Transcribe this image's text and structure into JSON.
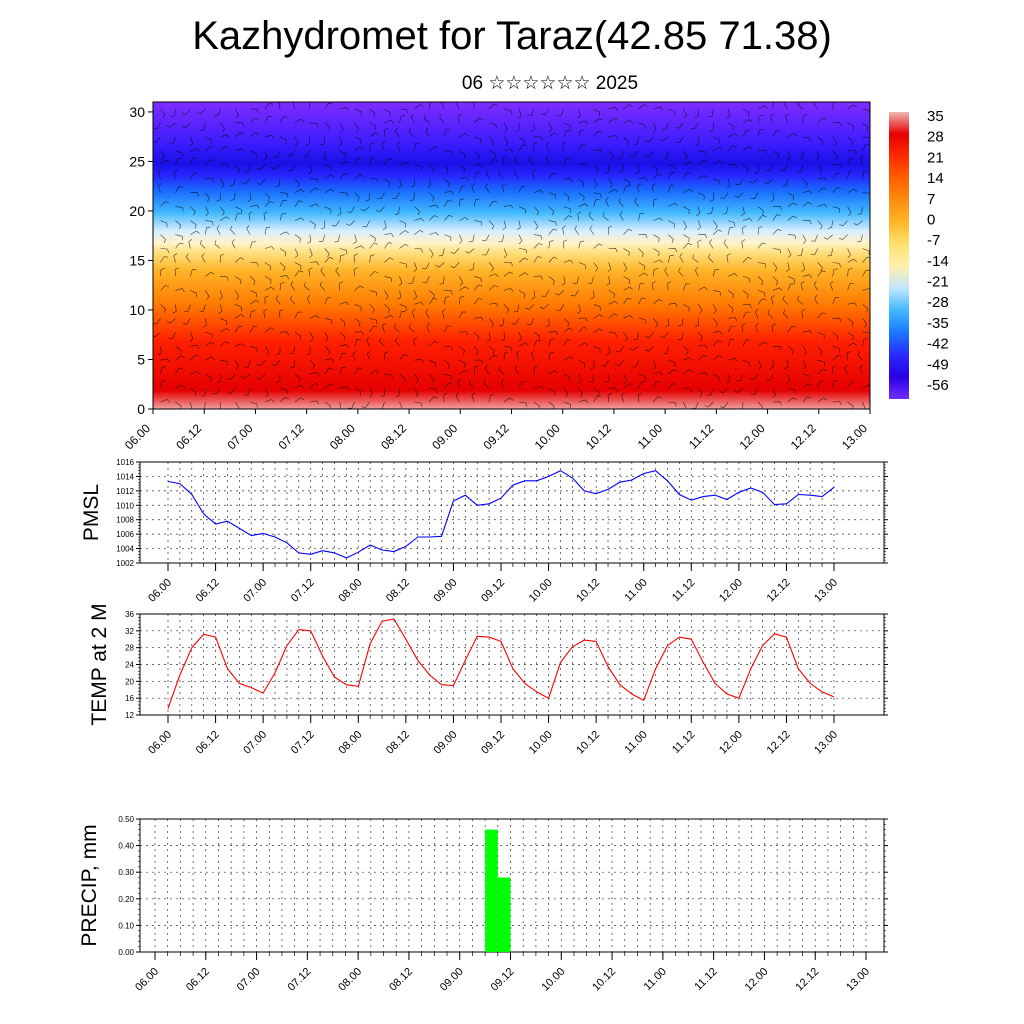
{
  "title": "Kazhydromet for Taraz(42.85 71.38)",
  "subtitle": "06 ☆☆☆☆☆☆ 2025",
  "chart_data": [
    {
      "type": "heatmap",
      "title": "",
      "y_ticks": [
        "0",
        "5",
        "10",
        "15",
        "20",
        "25",
        "30"
      ],
      "y_range": [
        0,
        31
      ],
      "x_ticks": [
        "06.00",
        "06.12",
        "07.00",
        "07.12",
        "08.00",
        "08.12",
        "09.00",
        "09.12",
        "10.00",
        "10.12",
        "11.00",
        "11.12",
        "12.00",
        "12.12",
        "13.00"
      ],
      "colorbar_labels": [
        "35",
        "28",
        "21",
        "14",
        "7",
        "0",
        "-7",
        "-14",
        "-21",
        "-28",
        "-35",
        "-42",
        "-49",
        "-56"
      ],
      "colorbar_colors": [
        "#f0b4b4",
        "#e60000",
        "#ff2a00",
        "#ff6000",
        "#ff8c10",
        "#ffb828",
        "#ffe070",
        "#fff0b0",
        "#bfe6ff",
        "#40b8ff",
        "#1a78ff",
        "#2a2aff",
        "#2800e6",
        "#7030ff"
      ]
    },
    {
      "type": "line",
      "ylabel": "PMSL",
      "ylim": [
        1002,
        1016
      ],
      "y_ticks": [
        "1002",
        "1004",
        "1006",
        "1008",
        "1010",
        "1012",
        "1014",
        "1016"
      ],
      "x_ticks": [
        "06.00",
        "06.12",
        "07.00",
        "07.12",
        "08.00",
        "08.12",
        "09.00",
        "09.12",
        "10.00",
        "10.12",
        "11.00",
        "11.12",
        "12.00",
        "12.12",
        "13.00"
      ],
      "series": [
        {
          "color": "#0000ff",
          "values": [
            1013.3,
            1013.0,
            1011.5,
            1008.8,
            1007.4,
            1007.8,
            1006.8,
            1005.8,
            1006.1,
            1005.6,
            1004.8,
            1003.4,
            1003.2,
            1003.7,
            1003.4,
            1002.7,
            1003.5,
            1004.5,
            1003.8,
            1003.6,
            1004.3,
            1005.6,
            1005.6,
            1005.7,
            1010.6,
            1011.4,
            1010.0,
            1010.2,
            1011.0,
            1012.8,
            1013.4,
            1013.4,
            1014.0,
            1014.8,
            1013.8,
            1012.0,
            1011.6,
            1012.2,
            1013.2,
            1013.5,
            1014.4,
            1014.8,
            1013.4,
            1011.5,
            1010.7,
            1011.2,
            1011.4,
            1010.8,
            1011.8,
            1012.4,
            1011.8,
            1010.1,
            1010.2,
            1011.5,
            1011.4,
            1011.2,
            1012.5
          ]
        }
      ]
    },
    {
      "type": "line",
      "ylabel": "TEMP at 2 M",
      "ylim": [
        12,
        36
      ],
      "y_ticks": [
        "12",
        "16",
        "20",
        "24",
        "28",
        "32",
        "36"
      ],
      "x_ticks": [
        "06.00",
        "06.12",
        "07.00",
        "07.12",
        "08.00",
        "08.12",
        "09.00",
        "09.12",
        "10.00",
        "10.12",
        "11.00",
        "11.12",
        "12.00",
        "12.12",
        "13.00"
      ],
      "series": [
        {
          "color": "#ff0000",
          "values": [
            13.5,
            21.5,
            28.0,
            31.2,
            30.5,
            23.0,
            19.5,
            18.5,
            17.2,
            22.0,
            28.5,
            32.3,
            32.0,
            26.0,
            21.0,
            19.2,
            18.8,
            29.0,
            34.3,
            34.8,
            30.0,
            25.0,
            21.5,
            19.2,
            19.0,
            25.0,
            30.7,
            30.5,
            29.5,
            23.0,
            19.5,
            17.5,
            16.0,
            24.5,
            28.2,
            29.8,
            29.5,
            23.5,
            19.2,
            17.0,
            15.5,
            23.0,
            28.5,
            30.5,
            30.0,
            24.5,
            19.5,
            17.0,
            16.0,
            23.0,
            28.5,
            31.3,
            30.5,
            23.0,
            19.5,
            17.5,
            16.3
          ]
        }
      ]
    },
    {
      "type": "bar",
      "ylabel": "PRECIP, mm",
      "ylim": [
        0,
        0.5
      ],
      "y_ticks": [
        "0.00",
        "0.10",
        "0.20",
        "0.30",
        "0.40",
        "0.50"
      ],
      "x_ticks": [
        "06.00",
        "06.12",
        "07.00",
        "07.12",
        "08.00",
        "08.12",
        "09.00",
        "09.12",
        "10.00",
        "10.12",
        "11.00",
        "11.12",
        "12.00",
        "12.12",
        "13.00"
      ],
      "bars": [
        {
          "x": "09.06",
          "value": 0.46,
          "color": "#00ff00"
        },
        {
          "x": "09.09",
          "value": 0.28,
          "color": "#00ff00"
        }
      ]
    }
  ]
}
